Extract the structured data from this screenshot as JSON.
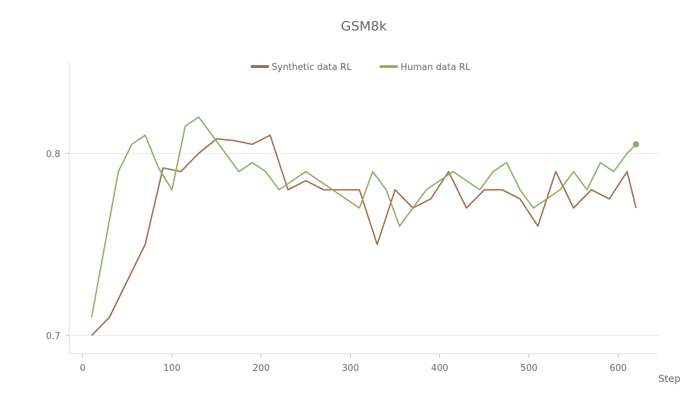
{
  "chart_data": {
    "type": "line",
    "title": "GSM8k",
    "xlabel": "Step",
    "ylabel": "",
    "xlim": [
      -15,
      645
    ],
    "ylim": [
      0.69,
      0.85
    ],
    "xticks": [
      0,
      100,
      200,
      300,
      400,
      500,
      600
    ],
    "yticks": [
      0.7,
      0.8
    ],
    "grid": "horizontal",
    "legend": "top-center",
    "series": [
      {
        "name": "Synthetic data RL",
        "color": "#9c6b4e",
        "x": [
          10,
          30,
          50,
          70,
          90,
          110,
          130,
          150,
          170,
          190,
          210,
          230,
          250,
          270,
          290,
          310,
          330,
          350,
          370,
          390,
          410,
          430,
          450,
          470,
          490,
          510,
          530,
          550,
          570,
          590,
          610,
          620
        ],
        "y": [
          0.7,
          0.71,
          0.73,
          0.75,
          0.792,
          0.79,
          0.8,
          0.808,
          0.807,
          0.805,
          0.81,
          0.78,
          0.785,
          0.78,
          0.78,
          0.78,
          0.75,
          0.78,
          0.77,
          0.775,
          0.79,
          0.77,
          0.78,
          0.78,
          0.775,
          0.76,
          0.79,
          0.77,
          0.78,
          0.775,
          0.79,
          0.77
        ]
      },
      {
        "name": "Human data RL",
        "color": "#8fac68",
        "x": [
          10,
          40,
          55,
          70,
          85,
          100,
          115,
          130,
          145,
          160,
          175,
          190,
          205,
          220,
          235,
          250,
          265,
          280,
          295,
          310,
          325,
          340,
          355,
          370,
          385,
          400,
          415,
          430,
          445,
          460,
          475,
          490,
          505,
          520,
          535,
          550,
          565,
          580,
          595,
          610,
          620
        ],
        "y": [
          0.71,
          0.79,
          0.805,
          0.81,
          0.792,
          0.78,
          0.815,
          0.82,
          0.81,
          0.8,
          0.79,
          0.795,
          0.79,
          0.78,
          0.785,
          0.79,
          0.785,
          0.78,
          0.775,
          0.77,
          0.79,
          0.78,
          0.76,
          0.77,
          0.78,
          0.785,
          0.79,
          0.785,
          0.78,
          0.79,
          0.795,
          0.78,
          0.77,
          0.775,
          0.78,
          0.79,
          0.78,
          0.795,
          0.79,
          0.8,
          0.805
        ]
      }
    ]
  }
}
